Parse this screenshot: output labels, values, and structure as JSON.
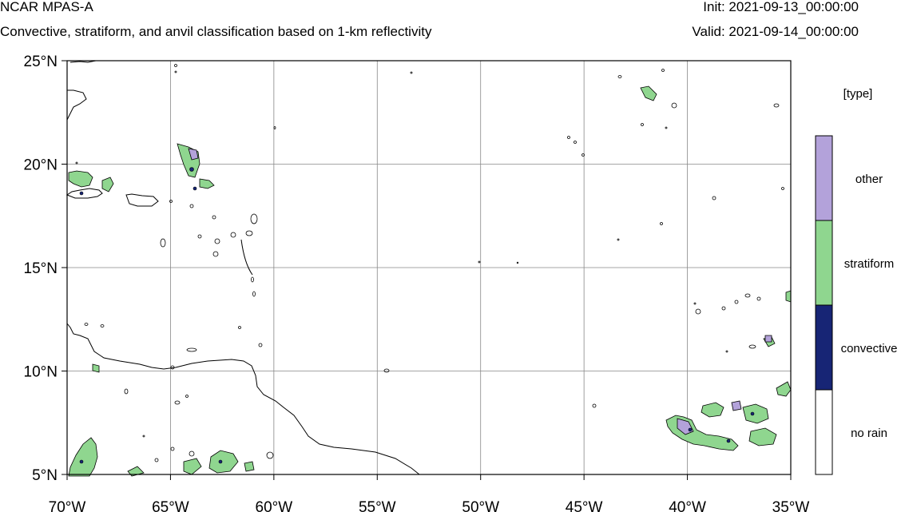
{
  "header": {
    "title": "NCAR MPAS-A",
    "subtitle": "Convective, stratiform, and anvil classification based on 1-km reflectivity",
    "init": "Init: 2021-09-13_00:00:00",
    "valid": "Valid: 2021-09-14_00:00:00"
  },
  "map": {
    "lat_range": [
      5,
      25
    ],
    "lon_range": [
      -70,
      -35
    ],
    "lat_ticks": [
      {
        "value": 25,
        "label": "25°N"
      },
      {
        "value": 20,
        "label": "20°N"
      },
      {
        "value": 15,
        "label": "15°N"
      },
      {
        "value": 10,
        "label": "10°N"
      },
      {
        "value": 5,
        "label": "5°N"
      }
    ],
    "lon_ticks": [
      {
        "value": -70,
        "label": "70°W"
      },
      {
        "value": -65,
        "label": "65°W"
      },
      {
        "value": -60,
        "label": "60°W"
      },
      {
        "value": -55,
        "label": "55°W"
      },
      {
        "value": -50,
        "label": "50°W"
      },
      {
        "value": -45,
        "label": "45°W"
      },
      {
        "value": -40,
        "label": "40°W"
      },
      {
        "value": -35,
        "label": "35°W"
      }
    ],
    "grid": true
  },
  "legend": {
    "title": "[type]",
    "items": [
      {
        "label": "other",
        "color": "#b3a2da"
      },
      {
        "label": "stratiform",
        "color": "#8fd68f"
      },
      {
        "label": "convective",
        "color": "#172575"
      },
      {
        "label": "no rain",
        "color": "#ffffff"
      }
    ]
  }
}
